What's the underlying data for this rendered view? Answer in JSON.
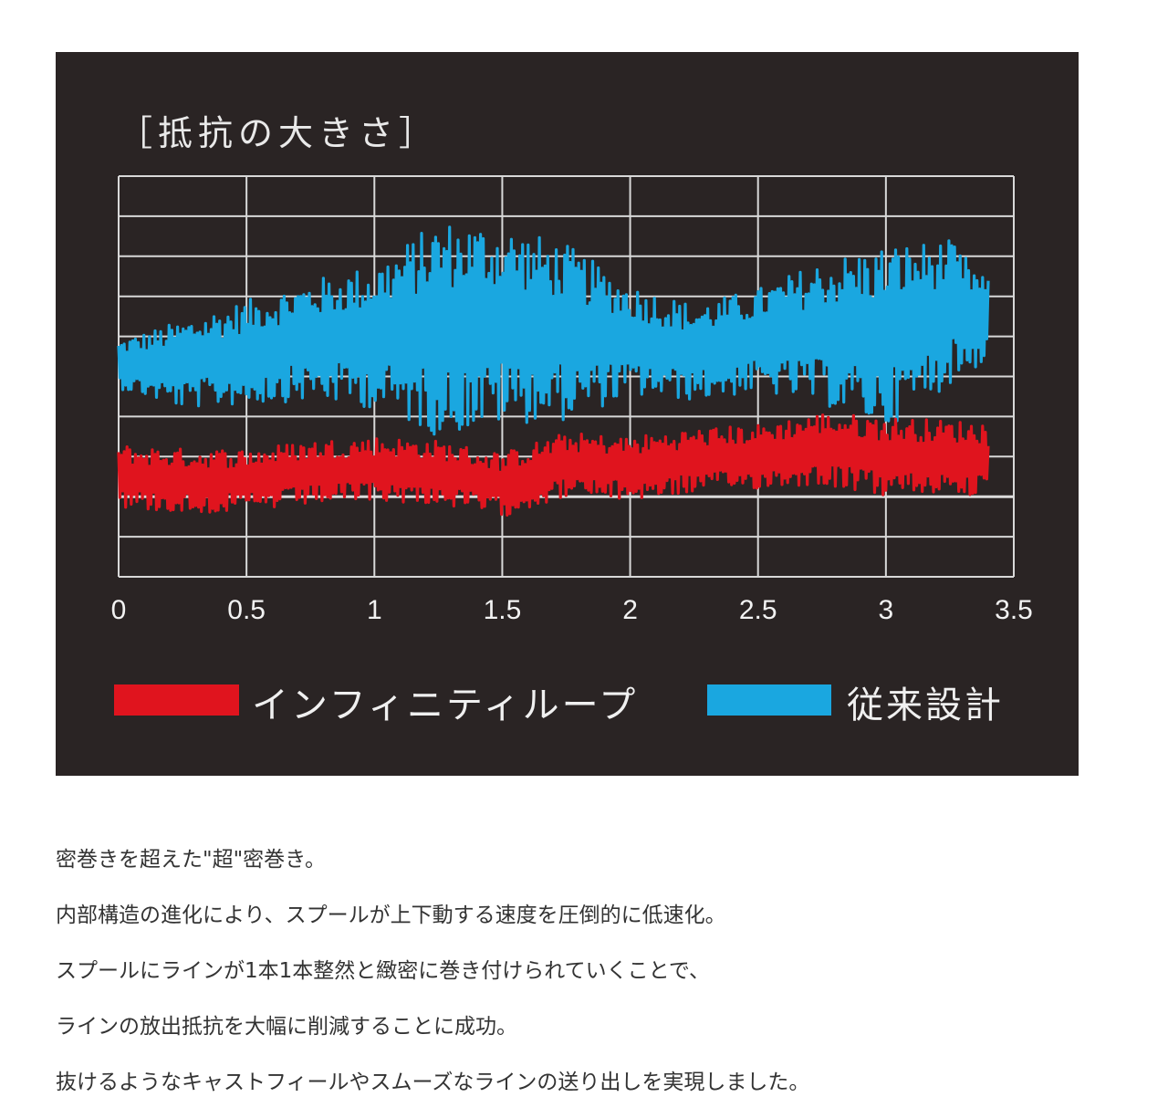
{
  "chart_data": {
    "type": "line",
    "title": "［抵抗の大きさ］",
    "xlabel": "",
    "ylabel": "",
    "x_ticks": [
      "0",
      "0.5",
      "1",
      "1.5",
      "2",
      "2.5",
      "3",
      "3.5"
    ],
    "xlim": [
      0,
      3.5
    ],
    "ylim": [
      0,
      10
    ],
    "grid": true,
    "legend_position": "bottom",
    "baseline": 2,
    "series": [
      {
        "name": "インフィニティループ",
        "color": "#e0141e",
        "x": [
          0,
          0.25,
          0.5,
          0.75,
          1,
          1.25,
          1.5,
          1.75,
          2,
          2.25,
          2.5,
          2.75,
          3,
          3.25,
          3.4
        ],
        "y": [
          2.5,
          2.4,
          2.4,
          2.6,
          2.7,
          2.6,
          2.3,
          2.8,
          2.7,
          2.9,
          3.0,
          3.2,
          3.0,
          3.0,
          2.9
        ],
        "amplitude": [
          0.8,
          0.8,
          0.8,
          0.8,
          0.8,
          0.8,
          0.8,
          0.8,
          0.8,
          0.8,
          0.8,
          0.9,
          1.0,
          0.9,
          1.0
        ]
      },
      {
        "name": "従来設計",
        "color": "#1aa7e0",
        "x": [
          0,
          0.25,
          0.5,
          0.75,
          1,
          1.25,
          1.5,
          1.75,
          2,
          2.25,
          2.5,
          2.75,
          3,
          3.25,
          3.4
        ],
        "y": [
          5.3,
          5.3,
          5.6,
          5.9,
          6.0,
          6.2,
          6.3,
          6.1,
          5.9,
          5.6,
          5.9,
          6.1,
          6.0,
          6.6,
          6.4
        ],
        "amplitude": [
          0.6,
          1.1,
          1.3,
          1.5,
          1.8,
          2.7,
          2.5,
          2.2,
          1.4,
          1.2,
          1.3,
          1.8,
          2.3,
          1.8,
          1.0
        ]
      }
    ]
  },
  "description": {
    "lines": [
      "密巻きを超えた\"超\"密巻き。",
      "内部構造の進化により、スプールが上下動する速度を圧倒的に低速化。",
      "スプールにラインが1本1本整然と緻密に巻き付けられていくことで、",
      "ラインの放出抵抗を大幅に削減することに成功。",
      "抜けるようなキャストフィールやスムーズなラインの送り出しを実現しました。"
    ]
  }
}
